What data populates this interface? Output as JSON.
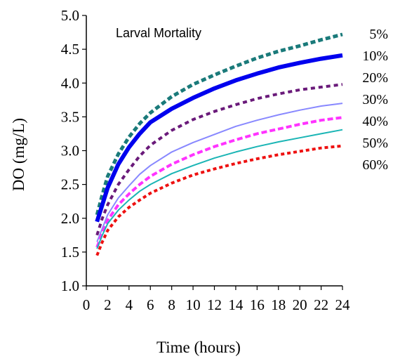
{
  "chart_data": {
    "type": "line",
    "title": "",
    "annotation": "Larval Mortality",
    "xlabel": "Time (hours)",
    "ylabel": "DO  (mg/L)",
    "xlim": [
      0,
      24
    ],
    "ylim": [
      1.0,
      5.0
    ],
    "x_ticks": [
      0,
      2,
      4,
      6,
      8,
      10,
      12,
      14,
      16,
      18,
      20,
      22,
      24
    ],
    "x_tick_labels": [
      "0",
      "2",
      "4",
      "6",
      "8",
      "10",
      "12",
      "14",
      "16",
      "18",
      "20",
      "22",
      "24"
    ],
    "y_ticks": [
      1.0,
      1.5,
      2.0,
      2.5,
      3.0,
      3.5,
      4.0,
      4.5,
      5.0
    ],
    "y_tick_labels": [
      "1.0",
      "1.5",
      "2.0",
      "2.5",
      "3.0",
      "3.5",
      "4.0",
      "4.5",
      "5.0"
    ],
    "grid": false,
    "x": [
      1,
      1.5,
      2,
      3,
      4,
      5,
      6,
      8,
      10,
      12,
      14,
      16,
      18,
      20,
      22,
      24
    ],
    "series": [
      {
        "name": "5%",
        "color": "#1a7a7a",
        "dash": "7,4",
        "width": 5,
        "values": [
          2.05,
          2.35,
          2.62,
          2.95,
          3.2,
          3.4,
          3.56,
          3.8,
          3.98,
          4.12,
          4.25,
          4.37,
          4.47,
          4.55,
          4.64,
          4.72
        ]
      },
      {
        "name": "10%",
        "color": "#0000ee",
        "dash": "",
        "width": 6,
        "values": [
          1.95,
          2.2,
          2.45,
          2.8,
          3.05,
          3.25,
          3.42,
          3.62,
          3.78,
          3.92,
          4.04,
          4.14,
          4.23,
          4.3,
          4.36,
          4.41
        ]
      },
      {
        "name": "20%",
        "color": "#6a1a7a",
        "dash": "6,5",
        "width": 4,
        "values": [
          1.75,
          2.0,
          2.2,
          2.5,
          2.72,
          2.92,
          3.08,
          3.3,
          3.46,
          3.58,
          3.68,
          3.77,
          3.84,
          3.9,
          3.94,
          3.98
        ]
      },
      {
        "name": "30%",
        "color": "#8888ff",
        "dash": "",
        "width": 2,
        "values": [
          1.65,
          1.85,
          2.05,
          2.3,
          2.48,
          2.65,
          2.78,
          2.98,
          3.12,
          3.24,
          3.36,
          3.45,
          3.53,
          3.6,
          3.66,
          3.7
        ]
      },
      {
        "name": "40%",
        "color": "#ff33ff",
        "dash": "8,4",
        "width": 4,
        "values": [
          1.57,
          1.78,
          1.97,
          2.2,
          2.36,
          2.5,
          2.62,
          2.8,
          2.94,
          3.06,
          3.16,
          3.25,
          3.32,
          3.39,
          3.45,
          3.49
        ]
      },
      {
        "name": "50%",
        "color": "#1ab5b5",
        "dash": "",
        "width": 2,
        "values": [
          1.55,
          1.75,
          1.92,
          2.12,
          2.27,
          2.4,
          2.5,
          2.66,
          2.78,
          2.89,
          2.98,
          3.06,
          3.13,
          3.19,
          3.25,
          3.31
        ]
      },
      {
        "name": "60%",
        "color": "#ee1111",
        "dash": "5,4",
        "width": 4,
        "values": [
          1.45,
          1.65,
          1.82,
          2.02,
          2.16,
          2.27,
          2.37,
          2.52,
          2.64,
          2.73,
          2.81,
          2.88,
          2.94,
          2.99,
          3.04,
          3.07
        ]
      }
    ]
  }
}
